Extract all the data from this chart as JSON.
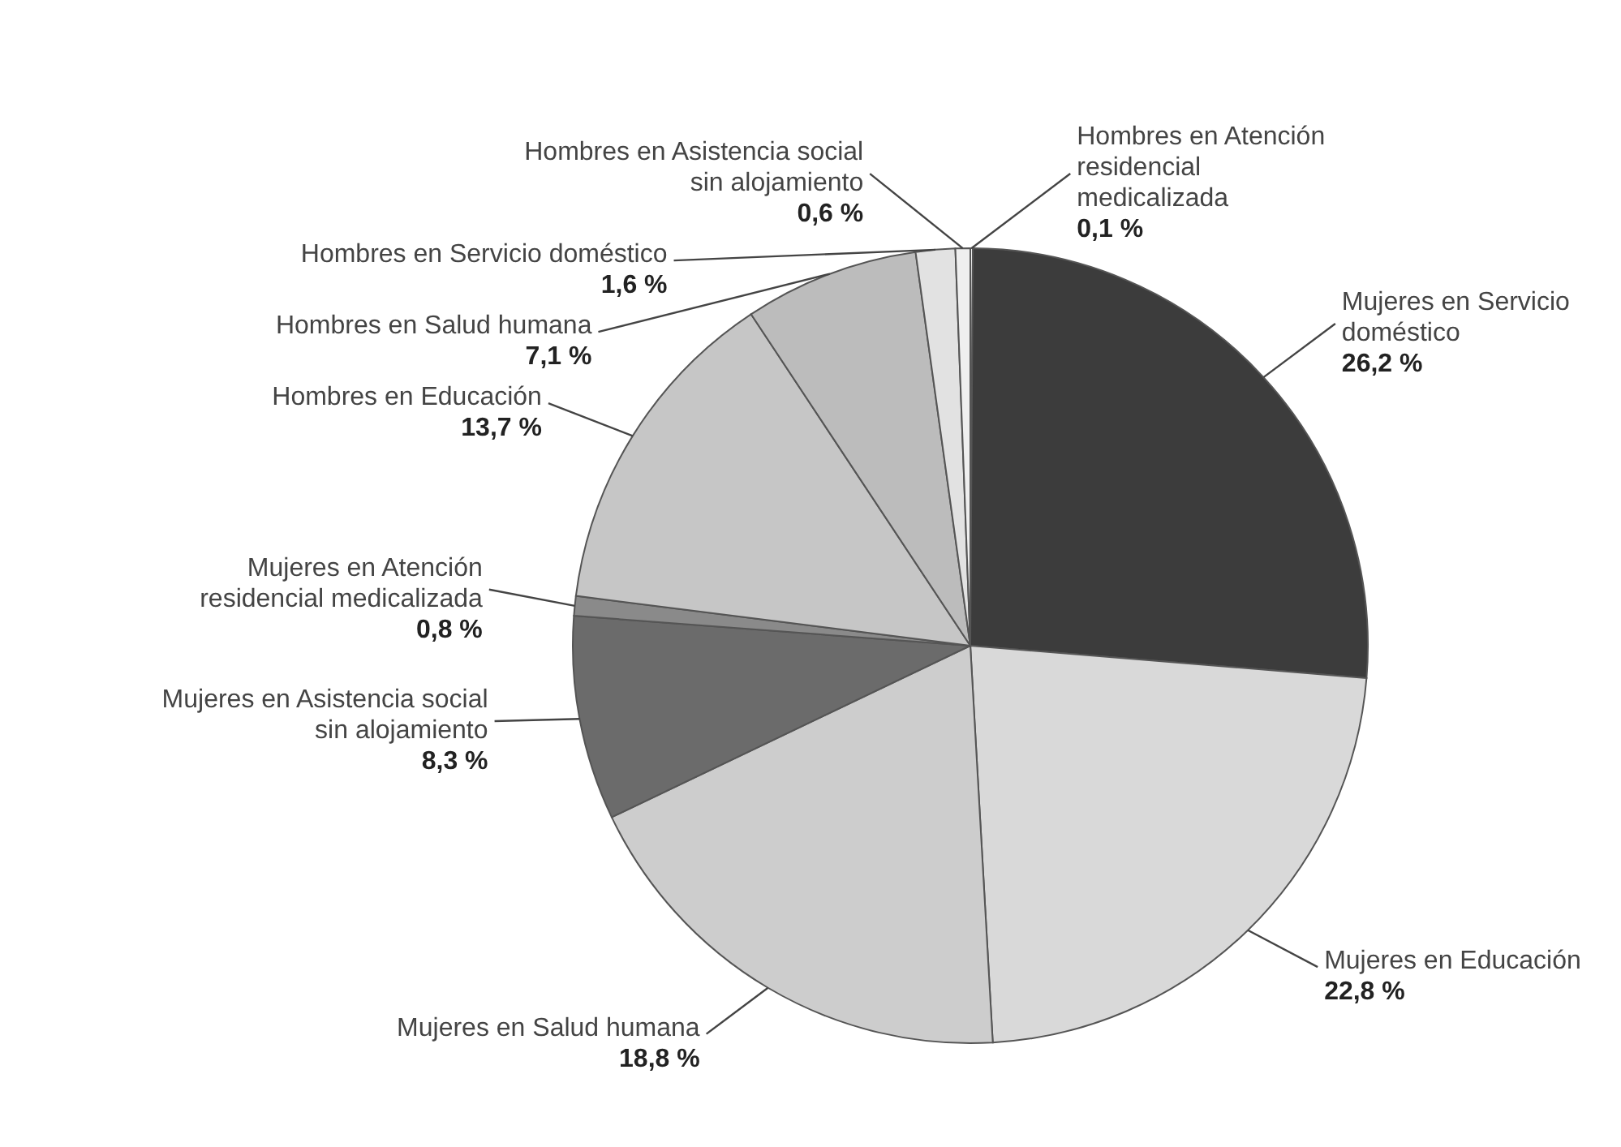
{
  "chart_data": {
    "type": "pie",
    "categories": [
      "Hombres en Atención residencial medicalizada",
      "Mujeres en Servicio doméstico",
      "Mujeres en Educación",
      "Mujeres en Salud humana",
      "Mujeres en Asistencia social sin alojamiento",
      "Mujeres en Atención residencial medicalizada",
      "Hombres en Educación",
      "Hombres en Salud humana",
      "Hombres en Servicio doméstico",
      "Hombres en Asistencia social sin alojamiento"
    ],
    "values": [
      0.1,
      26.2,
      22.8,
      18.8,
      8.3,
      0.8,
      13.7,
      7.1,
      1.6,
      0.6
    ],
    "value_labels": [
      "0,1 %",
      "26,2 %",
      "22,8 %",
      "18,8 %",
      "8,3 %",
      "0,8 %",
      "13,7 %",
      "7,1 %",
      "1,6 %",
      "0,6 %"
    ],
    "colors": [
      "#f4f4f4",
      "#3c3c3c",
      "#d9d9d9",
      "#cdcdcd",
      "#6b6b6b",
      "#8a8a8a",
      "#c6c6c6",
      "#bcbcbc",
      "#e2e2e2",
      "#efefef"
    ]
  }
}
